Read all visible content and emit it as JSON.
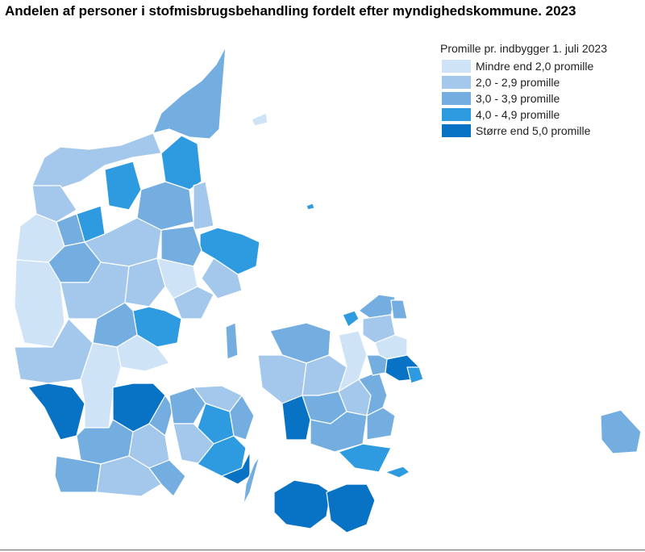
{
  "title": "Andelen af personer i stofmisbrugsbehandling fordelt efter myndighedskommune. 2023",
  "legend": {
    "title": "Promille pr. indbygger 1. juli 2023",
    "items": [
      {
        "label": "Mindre end 2,0 promille",
        "color": "#cfe3f6"
      },
      {
        "label": "2,0 - 2,9 promille",
        "color": "#a3c8ec"
      },
      {
        "label": "3,0 - 3,9 promille",
        "color": "#74aee0"
      },
      {
        "label": "4,0 - 4,9 promille",
        "color": "#2e9be0"
      },
      {
        "label": "Større end 5,0 promille",
        "color": "#0872c4"
      }
    ]
  }
}
